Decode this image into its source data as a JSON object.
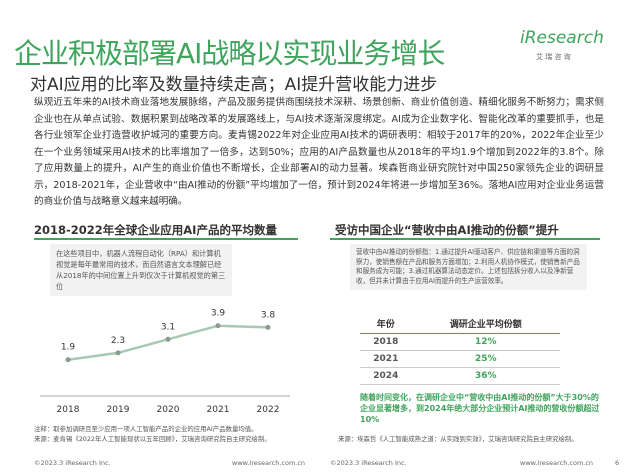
{
  "header": {
    "title": "企业积极部署AI战略以实现业务增长",
    "subtitle": "对AI应用的比率及数量持续走高；AI提升营收能力进步",
    "logo": "iResearch",
    "logo_sub": "艾 瑞 咨 询"
  },
  "body": "纵观近五年来的AI技术商业落地发展脉络，产品及服务提供商围绕技术深耕、场景创新、商业价值创造、精细化服务不断努力；需求侧企业也在从单点试验、数据积累到战略改革的发展路线上，与AI技术逐渐深度绑定。AI成为企业数字化、智能化改革的重要抓手，也是各行业领军企业打造营收护城河的重要方向。麦肯锡2022年对企业应用AI技术的调研表明：相较于2017年的20%，2022年企业至少在一个业务领域采用AI技术的比率增加了一倍多，达到50%；应用的AI产品数量也从2018年的平均1.9个增加到2022年的3.8个。除了应用数量上的提升，AI产生的商业价值也不断增长，企业部署AI的动力显著。埃森哲商业研究院针对中国250家领先企业的调研显示，2018-2021年，企业营收中“由AI推动的份额”平均增加了一倍，预计到2024年将进一步增加至36%。落地AI应用对企业业务运营的商业价值与战略意义越来越明确。",
  "left": {
    "title": "2018-2022年全球企业应用AI产品的平均数量",
    "note": "在这些项目中，机器人流程自动化（RPA）和计算机视觉是每年最常用的技术，而自然语言文本理解已经从2018年的中间位置上升到仅次于计算机视觉的第三位",
    "footnote": "注释：取参加调研且至少应用一项人工智能产品的企业的应用AI产品数量均值。",
    "source": "来源：麦肯锡《2022年人工智能现状以五年回顾》，艾瑞咨询研究院自主研究绘制。"
  },
  "chart_data": {
    "type": "line",
    "categories": [
      "2018",
      "2019",
      "2020",
      "2021",
      "2022"
    ],
    "values": [
      1.9,
      2.3,
      3.1,
      3.9,
      3.8
    ],
    "color": "#a8c9b0"
  },
  "right": {
    "title": "受访中国企业“营收中由AI推动的份额”提升",
    "note": "营收中由AI推动的份额指：1.通过提升AI驱动客户、供应链和渠道等方面的洞察力，使销售额在产品和服务方面增加；2.利用人机协作模式，使销售新产品和服务成为可能；3.通过机器算法动态定价。上述包括拆分收入以及净新营收，但并未计算由于应用AI而提升的生产运营效率。",
    "table": {
      "header": [
        "年份",
        "调研企业平均份额"
      ],
      "rows": [
        [
          "2018",
          "12%"
        ],
        [
          "2021",
          "25%"
        ],
        [
          "2024",
          "36%"
        ]
      ]
    },
    "conclusion": "随着时间变化，在调研企业中“营收中由AI推动的份额”大于30%的企业显著增多，到2024年绝大部分企业预计AI推动的营收份额超过10%",
    "source": "来源：埃森哲《人工智能成熟之道：从实践到实效》，艾瑞咨询研究院自主研究绘制。"
  },
  "footer": {
    "left_copyright": "©2023.3 iResearch Inc.",
    "left_url": "www.iresearch.com.cn",
    "right_copyright": "©2023.3 iResearch Inc.",
    "right_url": "www.iresearch.com.cn",
    "page": "6"
  }
}
